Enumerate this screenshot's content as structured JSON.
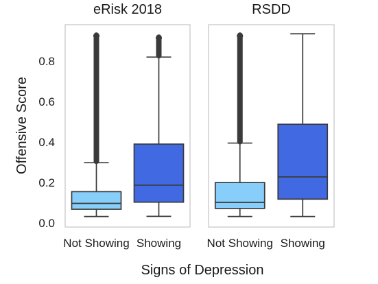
{
  "chart_data": {
    "type": "box",
    "ylabel": "Offensive Score",
    "xlabel": "Signs of Depression",
    "ylim": [
      -0.02,
      0.98
    ],
    "yticks": [
      "0.0",
      "0.2",
      "0.4",
      "0.6",
      "0.8"
    ],
    "categories": [
      "Not Showing",
      "Showing"
    ],
    "colors": {
      "Not Showing": "#87cefa",
      "Showing": "#4169e1"
    },
    "grid": false,
    "panels": [
      {
        "title": "eRisk 2018",
        "boxes": [
          {
            "category": "Not Showing",
            "whisker_low": 0.032,
            "q1": 0.068,
            "median": 0.097,
            "q3": 0.155,
            "whisker_high": 0.298,
            "outliers_from": 0.298,
            "outliers_to": 0.935
          },
          {
            "category": "Showing",
            "whisker_low": 0.033,
            "q1": 0.103,
            "median": 0.187,
            "q3": 0.39,
            "whisker_high": 0.82,
            "outliers_from": 0.82,
            "outliers_to": 0.925
          }
        ]
      },
      {
        "title": "RSDD",
        "boxes": [
          {
            "category": "Not Showing",
            "whisker_low": 0.032,
            "q1": 0.072,
            "median": 0.102,
            "q3": 0.2,
            "whisker_high": 0.395,
            "outliers_from": 0.395,
            "outliers_to": 0.935
          },
          {
            "category": "Showing",
            "whisker_low": 0.032,
            "q1": 0.118,
            "median": 0.228,
            "q3": 0.488,
            "whisker_high": 0.935,
            "outliers_from": null,
            "outliers_to": null
          }
        ]
      }
    ]
  }
}
